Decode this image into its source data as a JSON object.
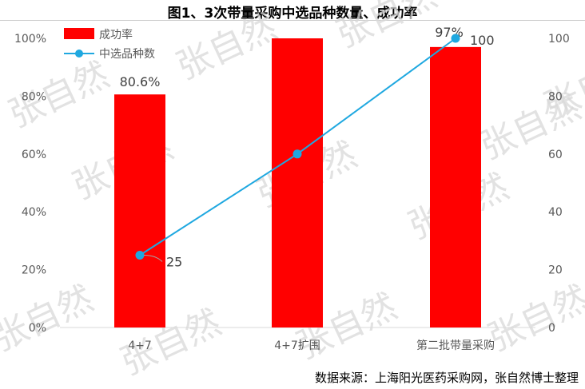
{
  "title": "图1、3次带量采购中选品种数量、成功率",
  "source": "数据来源：上海阳光医药采购网，张自然博士整理",
  "watermark": "张自然",
  "chart_data": {
    "type": "bar+line",
    "categories": [
      "4+7",
      "4+7扩围",
      "第二批带量采购"
    ],
    "series": [
      {
        "name": "成功率",
        "type": "bar",
        "axis": "left",
        "values": [
          80.6,
          100,
          97
        ],
        "labels": [
          "80.6%",
          "",
          "97%"
        ],
        "color": "#ff0000"
      },
      {
        "name": "中选品种数",
        "type": "line",
        "axis": "right",
        "values": [
          25,
          60,
          100
        ],
        "labels": [
          "25",
          "",
          "100"
        ],
        "color": "#1fa8e0"
      }
    ],
    "left_axis": {
      "ticks": [
        "0%",
        "20%",
        "40%",
        "60%",
        "80%",
        "100%"
      ],
      "ylim": [
        0,
        100
      ]
    },
    "right_axis": {
      "ticks": [
        "0",
        "20",
        "40",
        "60",
        "80",
        "100"
      ],
      "ylim": [
        0,
        100
      ]
    },
    "grid": false,
    "legend": "top-left"
  }
}
